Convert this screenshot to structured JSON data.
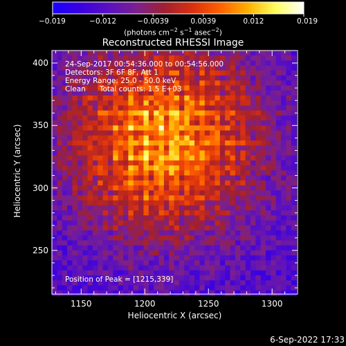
{
  "chart_data": {
    "type": "heatmap",
    "title": "Reconstructed RHESSI Image",
    "xlabel": "Heliocentric X (arcsec)",
    "ylabel": "Heliocentric Y (arcsec)",
    "xlim": [
      1127,
      1320
    ],
    "ylim": [
      215,
      410
    ],
    "x_ticks": [
      1150,
      1200,
      1250,
      1300
    ],
    "y_ticks": [
      250,
      300,
      350,
      400
    ],
    "peak": [
      1215,
      339
    ],
    "colorbar": {
      "min": -0.019,
      "max": 0.019,
      "tick_labels": [
        "−0.019",
        "−0.012",
        "−0.0039",
        "0.0039",
        "0.012",
        "0.019"
      ],
      "colormap": [
        "#1a00ff",
        "#3a00e0",
        "#5a10c0",
        "#7a2090",
        "#a02030",
        "#d83010",
        "#ff6000",
        "#ffb000",
        "#ffff60",
        "#ffffff"
      ]
    },
    "annotations": {
      "time_range": "24-Sep-2017 00:54:36.000 to 00:54:56.000",
      "detectors": "Detectors: 3F 6F 8F, Att 1",
      "energy": "Energy Range: 25.0 - 50.0 keV",
      "clean": "Clean      Total counts: 1.5 E+03",
      "peak_text": "Position of Peak = [1215,339]"
    },
    "unit_label": {
      "prefix": "(photons cm",
      "exp1": "−2",
      "mid": " s",
      "exp2": "−1",
      "mid2": " asec",
      "exp3": "−2",
      "suffix": ")"
    }
  },
  "footer": {
    "date": "6-Sep-2022 17:33"
  }
}
